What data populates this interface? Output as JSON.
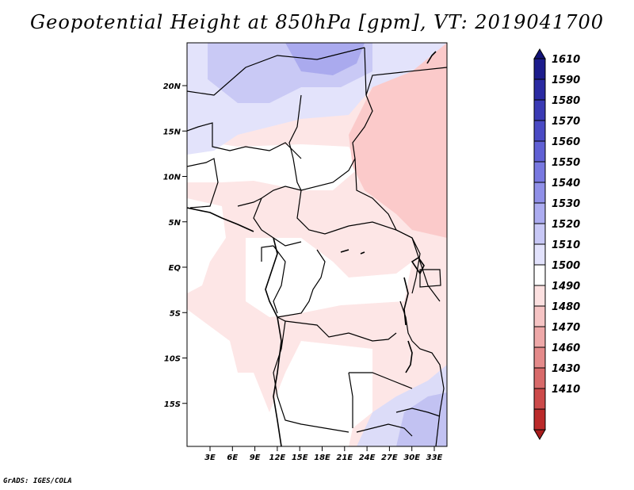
{
  "title": "Geopotential Height at 850hPa [gpm], VT: 2019041700",
  "footer": "GrADS: IGES/COLA",
  "map": {
    "lat_labels": [
      {
        "lat": 20,
        "label": "20N"
      },
      {
        "lat": 15,
        "label": "15N"
      },
      {
        "lat": 10,
        "label": "10N"
      },
      {
        "lat": 5,
        "label": "5N"
      },
      {
        "lat": 0,
        "label": "EQ"
      },
      {
        "lat": -5,
        "label": "5S"
      },
      {
        "lat": -10,
        "label": "10S"
      },
      {
        "lat": -15,
        "label": "15S"
      }
    ],
    "lon_labels": [
      {
        "lon": 3,
        "label": "3E"
      },
      {
        "lon": 6,
        "label": "6E"
      },
      {
        "lon": 9,
        "label": "9E"
      },
      {
        "lon": 12,
        "label": "12E"
      },
      {
        "lon": 15,
        "label": "15E"
      },
      {
        "lon": 18,
        "label": "18E"
      },
      {
        "lon": 21,
        "label": "21E"
      },
      {
        "lon": 24,
        "label": "24E"
      },
      {
        "lon": 27,
        "label": "27E"
      },
      {
        "lon": 30,
        "label": "30E"
      },
      {
        "lon": 33,
        "label": "33E"
      }
    ]
  },
  "colorbar": {
    "labels": [
      "1610",
      "1590",
      "1580",
      "1570",
      "1560",
      "1550",
      "1540",
      "1530",
      "1520",
      "1510",
      "1500",
      "1490",
      "1480",
      "1470",
      "1460",
      "1430",
      "1410"
    ],
    "colors": [
      "#1c1c8c",
      "#2a2aa2",
      "#3a3ab4",
      "#4a4ac4",
      "#6060d4",
      "#7878e0",
      "#9090e8",
      "#acacf0",
      "#c8c8f6",
      "#e2e2fc",
      "#ffffff",
      "#fce0e0",
      "#f6c4c4",
      "#eea8a8",
      "#e48a8a",
      "#d86a6a",
      "#cc4a4a",
      "#bb2a2a"
    ],
    "color_top": "#141478",
    "color_bottom": "#a81c1c"
  }
}
